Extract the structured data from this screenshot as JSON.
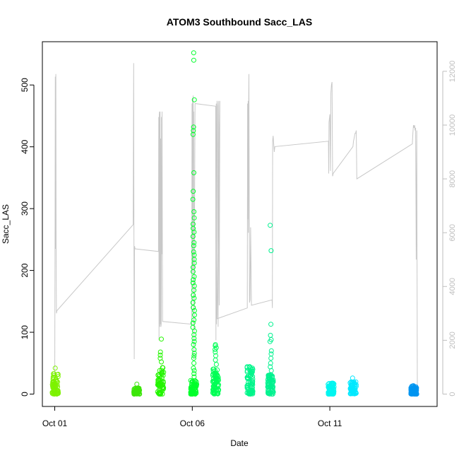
{
  "chart_data": {
    "type": "scatter",
    "title": "ATOM3 Southbound Sacc_LAS",
    "xlabel": "Date",
    "ylabel": "Sacc_LAS",
    "x_ticks": [
      "Oct 01",
      "Oct 06",
      "Oct 11"
    ],
    "x_tick_days": [
      1,
      6,
      11
    ],
    "xlim": [
      0.55,
      14.9
    ],
    "ylim": [
      -20,
      570
    ],
    "y_ticks": [
      0,
      100,
      200,
      300,
      400,
      500
    ],
    "y2lim": [
      -460,
      13100
    ],
    "y2_ticks": [
      0,
      2000,
      4000,
      6000,
      8000,
      10000,
      12000
    ],
    "grid": false,
    "legend": "none",
    "colors": {
      "axis": "#000000",
      "right_axis": "#bebebe",
      "line": "#c8c8c8"
    },
    "series": [
      {
        "day": 1.02,
        "color": "#7df200",
        "y_min": 0,
        "y_max": 35,
        "outliers": [
          42
        ]
      },
      {
        "day": 3.98,
        "color": "#3ce60a",
        "y_min": 0,
        "y_max": 10,
        "outliers": [
          16
        ]
      },
      {
        "day": 4.85,
        "color": "#24f500",
        "y_min": 0,
        "y_max": 45,
        "outliers": [
          52,
          58,
          63,
          68,
          89
        ]
      },
      {
        "day": 6.05,
        "color": "#00ff2a",
        "y_min": 0,
        "y_max": 22,
        "outliers": [
          28,
          33,
          38,
          42,
          50,
          58,
          62,
          66,
          72,
          80,
          85,
          90,
          96,
          102,
          108,
          115,
          120,
          128,
          135,
          140,
          148,
          155,
          160,
          168,
          175,
          180,
          185,
          190,
          198,
          205,
          212,
          218,
          225,
          230,
          240,
          245,
          255,
          262,
          268,
          275,
          285,
          295,
          315,
          328,
          358,
          420,
          426,
          432,
          476,
          540,
          552
        ]
      },
      {
        "day": 6.85,
        "color": "#00ff55",
        "y_min": 0,
        "y_max": 42,
        "outliers": [
          48,
          55,
          62,
          68,
          72,
          75,
          78,
          80
        ]
      },
      {
        "day": 8.1,
        "color": "#00f58a",
        "y_min": 0,
        "y_max": 45,
        "outliers": []
      },
      {
        "day": 8.85,
        "color": "#00f28f",
        "y_min": 0,
        "y_max": 32,
        "outliers": [
          38,
          44,
          50,
          58,
          65,
          70,
          85,
          88,
          95,
          113,
          232,
          273
        ]
      },
      {
        "day": 11.05,
        "color": "#00f5f0",
        "y_min": 0,
        "y_max": 18,
        "outliers": []
      },
      {
        "day": 11.85,
        "color": "#00e8ff",
        "y_min": 0,
        "y_max": 20,
        "outliers": [
          26
        ]
      },
      {
        "day": 14.05,
        "color": "#0095f0",
        "y_min": 0,
        "y_max": 14,
        "outliers": []
      }
    ],
    "secondary_line": {
      "name": "",
      "x": [
        1.0,
        1.01,
        1.02,
        1.03,
        1.04,
        1.05,
        1.06,
        1.08,
        3.85,
        3.87,
        3.88,
        3.89,
        3.9,
        3.92,
        4.77,
        4.78,
        4.79,
        4.8,
        4.81,
        4.82,
        4.83,
        4.84,
        4.85,
        4.86,
        4.87,
        4.88,
        4.89,
        4.9,
        4.92,
        5.98,
        5.99,
        6.0,
        6.01,
        6.02,
        6.03,
        6.04,
        6.05,
        6.06,
        6.1,
        6.85,
        6.86,
        6.87,
        6.88,
        6.9,
        6.92,
        6.94,
        6.96,
        6.98,
        7.0,
        6.9,
        8.0,
        8.01,
        8.02,
        8.03,
        8.04,
        8.05,
        8.06,
        8.08,
        8.1,
        8.12,
        8.15,
        8.9,
        8.91,
        8.92,
        8.93,
        8.94,
        8.96,
        8.98,
        9.0,
        10.95,
        10.96,
        10.97,
        10.98,
        10.99,
        11.0,
        11.02,
        11.04,
        11.06,
        11.08,
        11.1,
        11.12,
        11.84,
        11.85,
        11.86,
        11.88,
        11.9,
        11.92,
        11.94,
        11.96,
        11.98,
        14.0,
        14.02,
        14.04,
        14.06,
        14.08,
        14.1,
        14.12,
        14.14,
        14.16,
        14.18
      ],
      "y": [
        0,
        5200,
        11800,
        5400,
        11900,
        5000,
        3000,
        3100,
        6300,
        12300,
        5500,
        1300,
        5500,
        5400,
        5300,
        10300,
        2000,
        10400,
        10500,
        2500,
        10500,
        2600,
        9500,
        2500,
        2600,
        10300,
        5200,
        10500,
        2700,
        2600,
        10800,
        4500,
        11000,
        4600,
        11100,
        9800,
        10500,
        1300,
        10800,
        10700,
        2000,
        10800,
        2600,
        10900,
        10700,
        2500,
        10900,
        3300,
        10900,
        2800,
        3200,
        10800,
        6500,
        10900,
        6000,
        11000,
        11900,
        3400,
        3500,
        6200,
        3300,
        3500,
        3200,
        9400,
        9500,
        9600,
        9300,
        9000,
        9200,
        9400,
        8200,
        10100,
        10200,
        10300,
        10400,
        8300,
        11200,
        11500,
        11600,
        8100,
        8200,
        9200,
        9300,
        9400,
        9500,
        9600,
        9700,
        9700,
        9800,
        8000,
        9300,
        9700,
        10000,
        9900,
        10000,
        9800,
        9900,
        5000,
        9800,
        100
      ]
    }
  }
}
